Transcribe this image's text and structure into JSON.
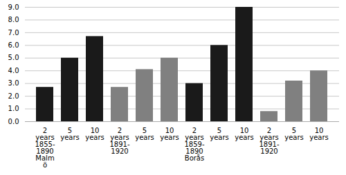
{
  "chart_data": {
    "type": "bar",
    "categories": [
      "2\nyears\n1855-\n1890\nMalm\nö",
      "5\nyears",
      "10\nyears",
      "2\nyears\n1891-\n1920",
      "5\nyears",
      "10\nyears",
      "2\nyears\n1859-\n1890\nBorås",
      "5\nyears",
      "10\nyears",
      "2\nyears\n1891-\n1920",
      "5\nyears",
      "10\nyears"
    ],
    "values": [
      2.7,
      5.0,
      6.7,
      2.7,
      4.1,
      5.0,
      3.0,
      6.0,
      9.0,
      0.8,
      3.2,
      4.0
    ],
    "colors": [
      "#1a1a1a",
      "#1a1a1a",
      "#1a1a1a",
      "#808080",
      "#808080",
      "#808080",
      "#1a1a1a",
      "#1a1a1a",
      "#1a1a1a",
      "#808080",
      "#808080",
      "#808080"
    ],
    "ylim": [
      0.0,
      9.0
    ],
    "yticks": [
      {
        "value": 0,
        "label": "0.0"
      },
      {
        "value": 1,
        "label": "1.0"
      },
      {
        "value": 2,
        "label": "2.0"
      },
      {
        "value": 3,
        "label": "3.0"
      },
      {
        "value": 4,
        "label": "4.0"
      },
      {
        "value": 5,
        "label": "5.0"
      },
      {
        "value": 6,
        "label": "6.0"
      },
      {
        "value": 7,
        "label": "7.0"
      },
      {
        "value": 8,
        "label": "8.0"
      },
      {
        "value": 9,
        "label": "9.0"
      }
    ],
    "grid": true
  }
}
